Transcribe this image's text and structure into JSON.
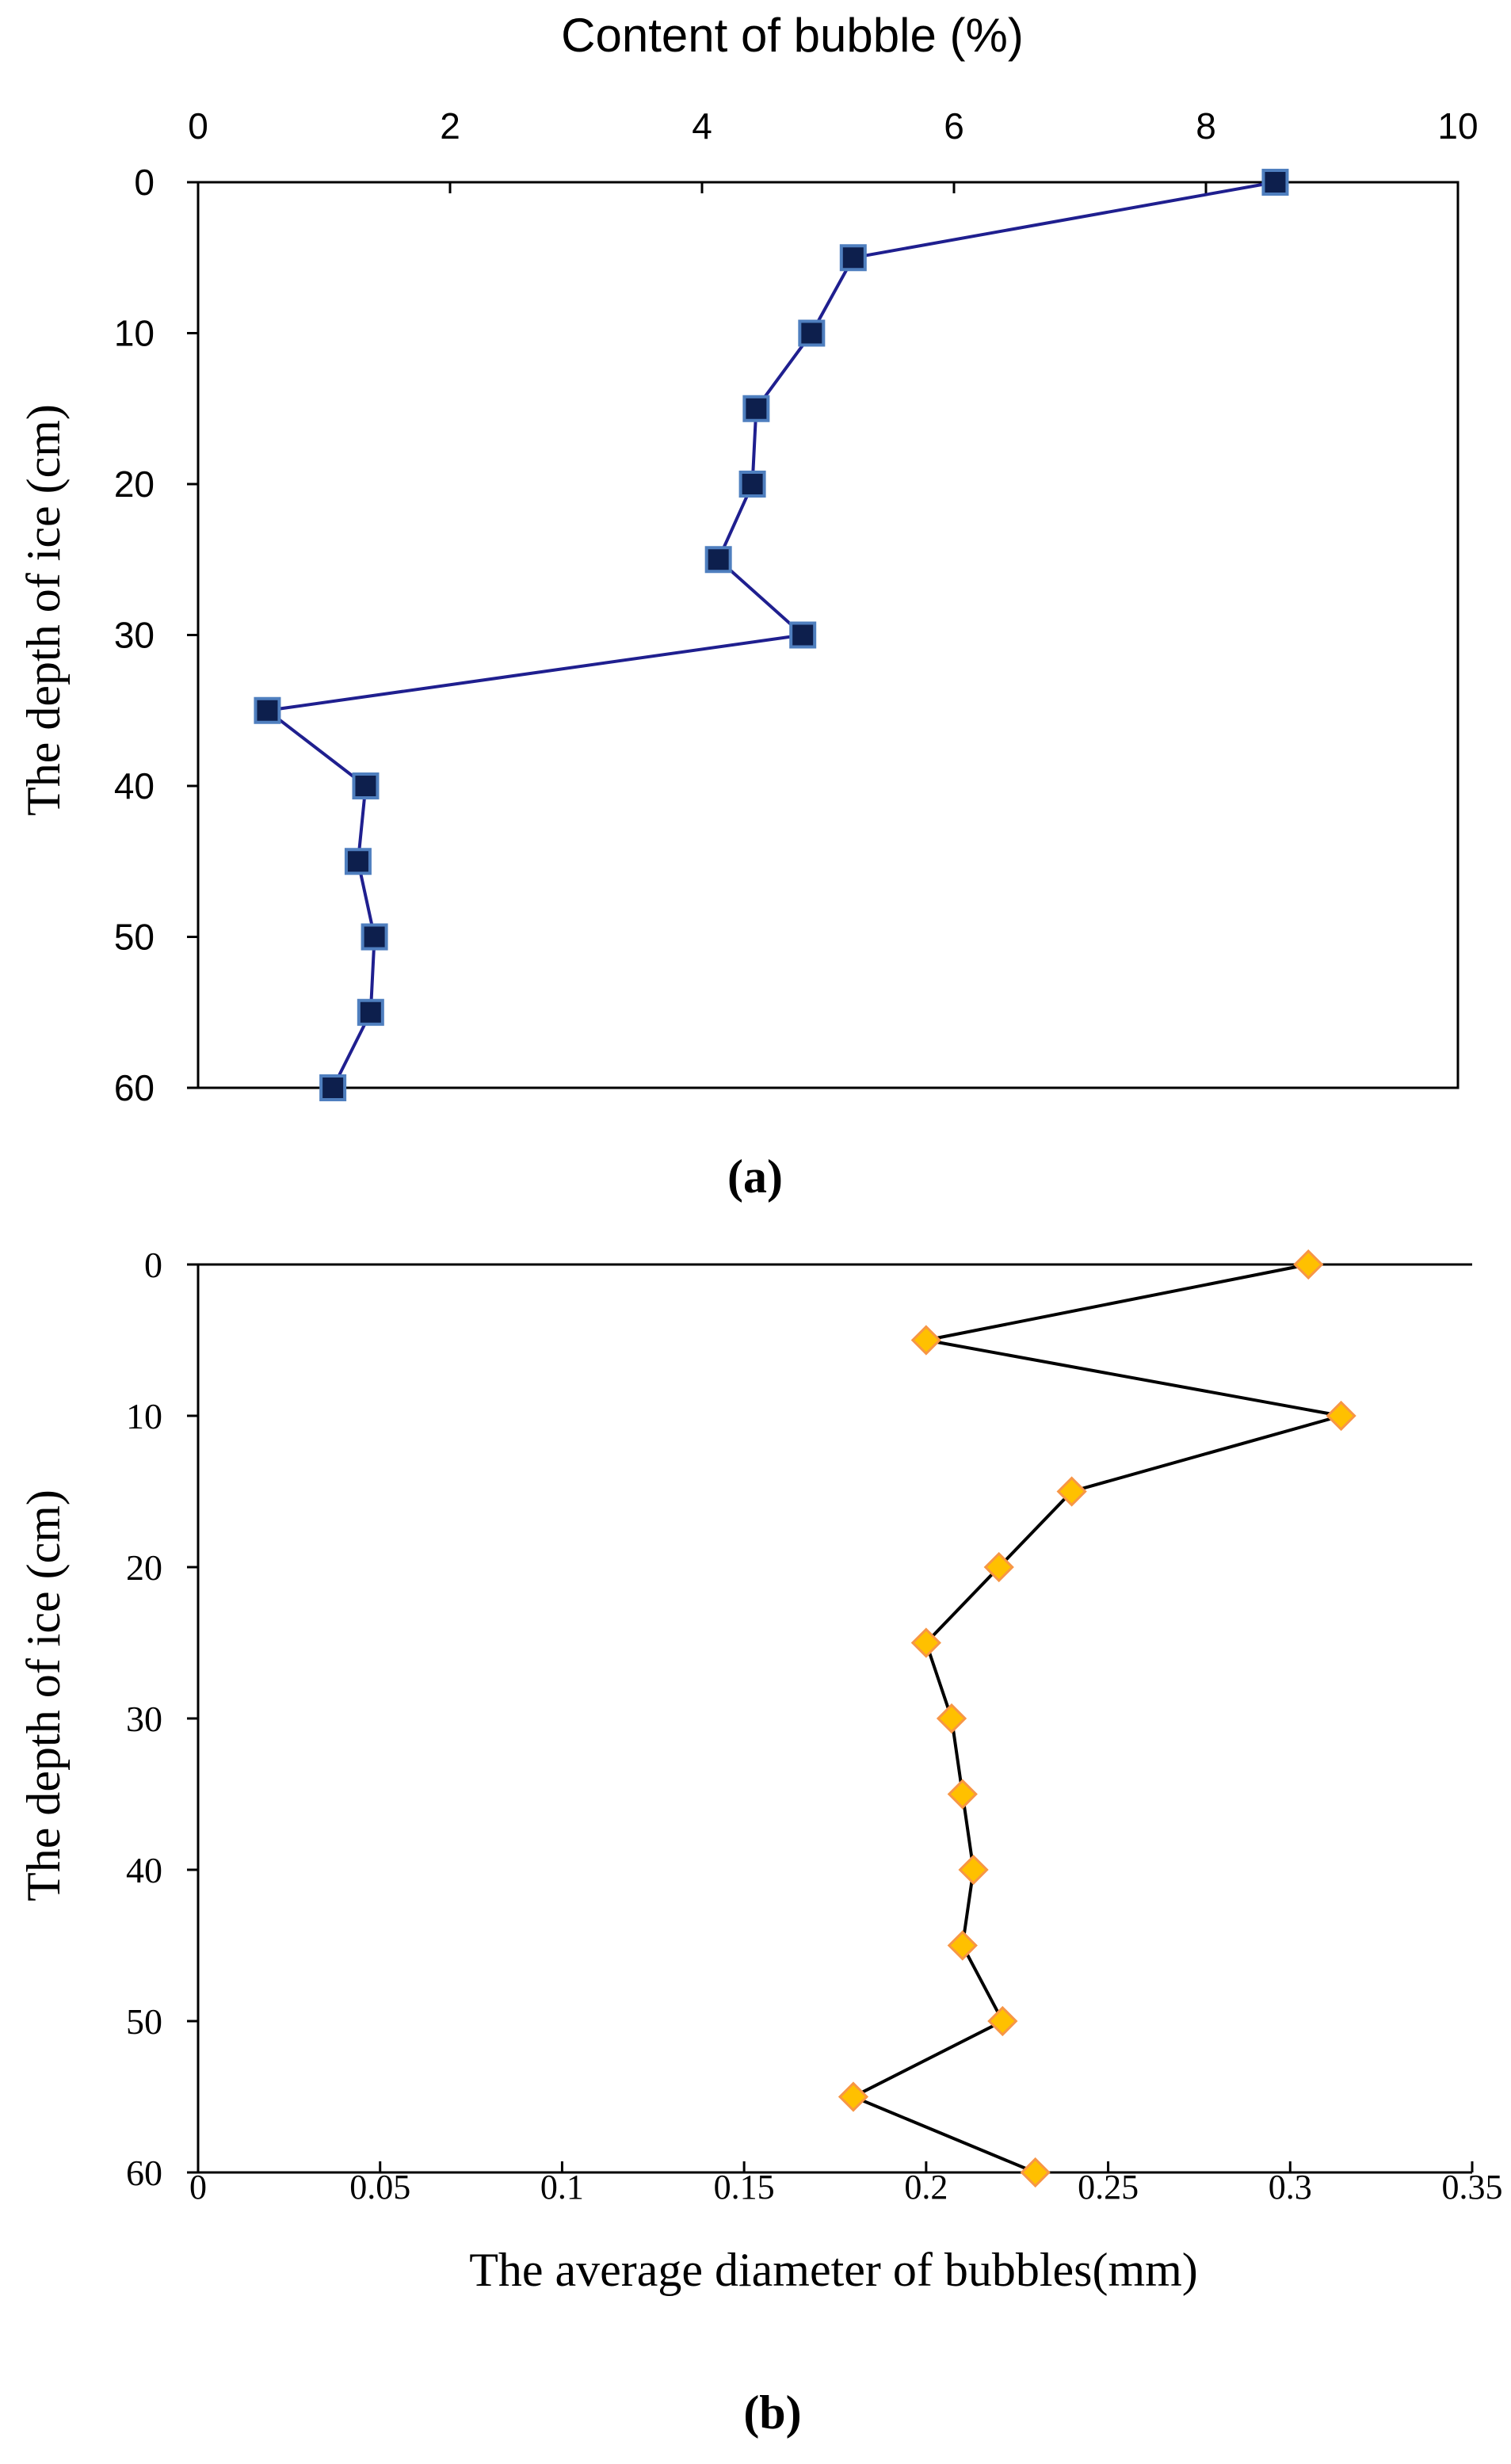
{
  "chart_data": [
    {
      "id": "a",
      "type": "line",
      "orientation": "vertical-profile",
      "caption": "(a)",
      "title": "",
      "xlabel": "Content of bubble (%)",
      "ylabel": "The depth of ice (cm)",
      "xlim": [
        0,
        10
      ],
      "ylim": [
        0,
        60
      ],
      "y_inverted": true,
      "x_axis_position": "top",
      "xticks": [
        0,
        2,
        4,
        6,
        8,
        10
      ],
      "xtick_labels": [
        "0",
        "2",
        "4",
        "6",
        "8",
        "10"
      ],
      "yticks": [
        0,
        10,
        20,
        30,
        40,
        50,
        60
      ],
      "ytick_labels": [
        "0",
        "10",
        "20",
        "30",
        "40",
        "50",
        "60"
      ],
      "grid": false,
      "series": [
        {
          "name": "Content of bubble",
          "marker": "square",
          "line_color": "#1f1f8f",
          "marker_fill": "#0d1f4d",
          "marker_edge": "#4f7fbf",
          "points": [
            {
              "x": 8.55,
              "depth": 0
            },
            {
              "x": 5.2,
              "depth": 5
            },
            {
              "x": 4.87,
              "depth": 10
            },
            {
              "x": 4.43,
              "depth": 15
            },
            {
              "x": 4.4,
              "depth": 20
            },
            {
              "x": 4.13,
              "depth": 25
            },
            {
              "x": 4.8,
              "depth": 30
            },
            {
              "x": 0.55,
              "depth": 35
            },
            {
              "x": 1.33,
              "depth": 40
            },
            {
              "x": 1.27,
              "depth": 45
            },
            {
              "x": 1.4,
              "depth": 50
            },
            {
              "x": 1.37,
              "depth": 55
            },
            {
              "x": 1.07,
              "depth": 60
            }
          ]
        }
      ]
    },
    {
      "id": "b",
      "type": "line",
      "orientation": "vertical-profile",
      "caption": "(b)",
      "title": "",
      "xlabel": "The average diameter of bubbles(mm)",
      "ylabel": "The depth of ice (cm)",
      "xlim": [
        0,
        0.35
      ],
      "ylim": [
        0,
        60
      ],
      "y_inverted": true,
      "x_axis_position": "bottom",
      "xticks": [
        0,
        0.05,
        0.1,
        0.15,
        0.2,
        0.25,
        0.3,
        0.35
      ],
      "xtick_labels": [
        "0",
        "0.05",
        "0.1",
        "0.15",
        "0.2",
        "0.25",
        "0.3",
        "0.35"
      ],
      "yticks": [
        0,
        10,
        20,
        30,
        40,
        50,
        60
      ],
      "ytick_labels": [
        "0",
        "10",
        "20",
        "30",
        "40",
        "50",
        "60"
      ],
      "grid": false,
      "series": [
        {
          "name": "Average diameter of bubbles",
          "marker": "diamond",
          "line_color": "#000000",
          "marker_fill": "#ffc000",
          "marker_edge": "#f79646",
          "points": [
            {
              "x": 0.305,
              "depth": 0
            },
            {
              "x": 0.2,
              "depth": 5
            },
            {
              "x": 0.314,
              "depth": 10
            },
            {
              "x": 0.24,
              "depth": 15
            },
            {
              "x": 0.22,
              "depth": 20
            },
            {
              "x": 0.2,
              "depth": 25
            },
            {
              "x": 0.207,
              "depth": 30
            },
            {
              "x": 0.21,
              "depth": 35
            },
            {
              "x": 0.213,
              "depth": 40
            },
            {
              "x": 0.21,
              "depth": 45
            },
            {
              "x": 0.221,
              "depth": 50
            },
            {
              "x": 0.18,
              "depth": 55
            },
            {
              "x": 0.23,
              "depth": 60
            }
          ]
        }
      ]
    }
  ]
}
